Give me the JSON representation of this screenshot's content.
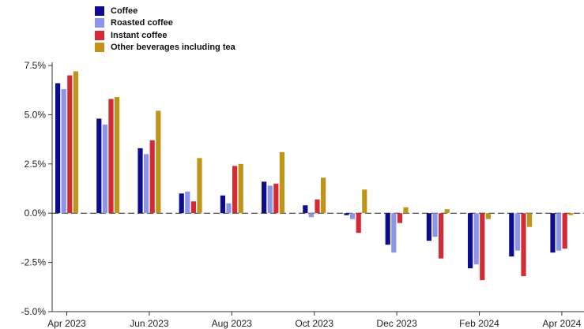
{
  "chart_data": {
    "type": "bar",
    "title": "",
    "xlabel": "",
    "ylabel": "",
    "ylim": [
      -5.0,
      7.5
    ],
    "yticks": [
      "7.5%",
      "5.0%",
      "2.5%",
      "0.0%",
      "-2.5%",
      "-5.0%"
    ],
    "ytick_values": [
      7.5,
      5.0,
      2.5,
      0.0,
      -2.5,
      -5.0
    ],
    "xtick_labels": [
      "Apr 2023",
      "Jun 2023",
      "Aug 2023",
      "Oct 2023",
      "Dec 2023",
      "Feb 2024",
      "Apr 2024"
    ],
    "xtick_positions": [
      0,
      2,
      4,
      6,
      8,
      10,
      12
    ],
    "categories": [
      "Apr 2023",
      "May 2023",
      "Jun 2023",
      "Jul 2023",
      "Aug 2023",
      "Sep 2023",
      "Oct 2023",
      "Nov 2023",
      "Dec 2023",
      "Jan 2024",
      "Feb 2024",
      "Mar 2024",
      "Apr 2024"
    ],
    "legend_position": "top-left",
    "grid": false,
    "series": [
      {
        "name": "Coffee",
        "color": "#0c0c8c",
        "values": [
          6.6,
          4.8,
          3.3,
          1.0,
          0.9,
          1.6,
          0.4,
          -0.1,
          -1.6,
          -1.4,
          -2.8,
          -2.2,
          -2.0
        ]
      },
      {
        "name": "Roasted coffee",
        "color": "#8c96e8",
        "values": [
          6.3,
          4.5,
          3.0,
          1.1,
          0.5,
          1.4,
          -0.2,
          -0.3,
          -2.0,
          -1.2,
          -2.6,
          -1.9,
          -1.9
        ]
      },
      {
        "name": "Instant coffee",
        "color": "#d42a35",
        "values": [
          7.0,
          5.8,
          3.7,
          0.6,
          2.4,
          1.5,
          0.7,
          -1.0,
          -0.5,
          -2.3,
          -3.4,
          -3.2,
          -1.8
        ]
      },
      {
        "name": "Other beverages including tea",
        "color": "#c09418",
        "values": [
          7.2,
          5.9,
          5.2,
          2.8,
          2.5,
          3.1,
          1.8,
          1.2,
          0.3,
          0.2,
          -0.3,
          -0.7,
          -0.1
        ]
      }
    ]
  }
}
